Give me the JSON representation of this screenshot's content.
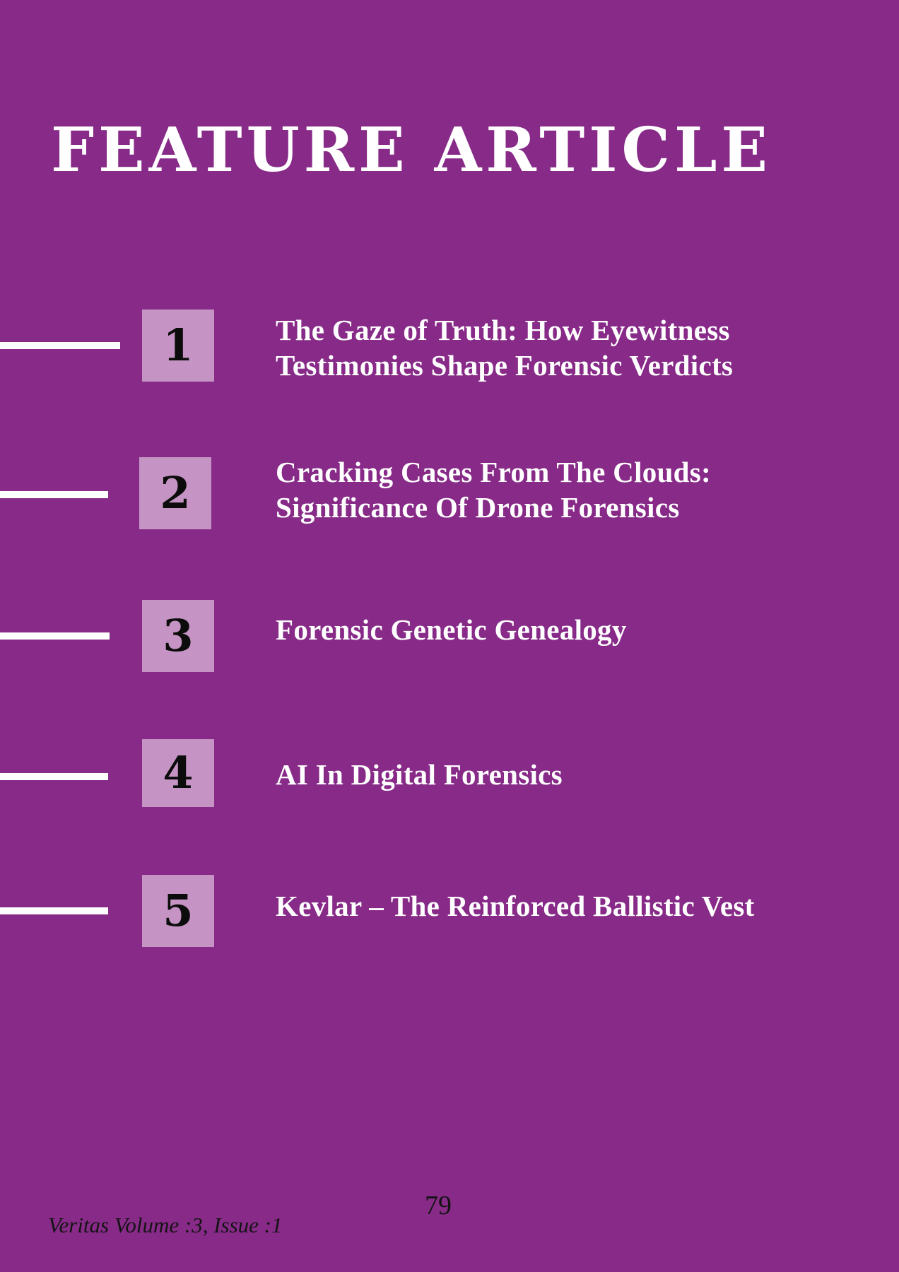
{
  "page": {
    "title": "FEATURE ARTICLE",
    "background_color": "#872a88",
    "box_color": "#c594c4"
  },
  "articles": [
    {
      "number": "1",
      "title": "The Gaze of Truth: How Eyewitness Testimonies Shape Forensic Verdicts"
    },
    {
      "number": "2",
      "title": "Cracking Cases From The Clouds: Significance Of Drone Forensics"
    },
    {
      "number": "3",
      "title": "Forensic Genetic Genealogy"
    },
    {
      "number": "4",
      "title": "AI In Digital Forensics"
    },
    {
      "number": "5",
      "title": "Kevlar – The Reinforced Ballistic Vest"
    }
  ],
  "footer": {
    "page_number": "79",
    "issue": "Veritas Volume :3, Issue :1"
  }
}
